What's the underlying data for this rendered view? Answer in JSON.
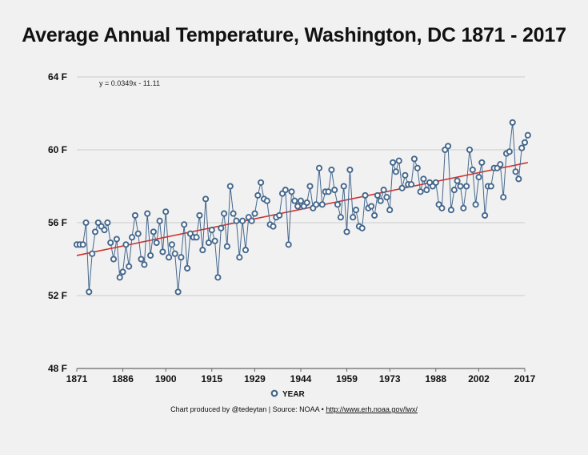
{
  "chart_data": {
    "type": "line",
    "title": "Average Annual Temperature, Washington, DC 1871 - 2017",
    "equation": "y = 0.0349x - 11.11",
    "ylim": [
      48,
      64
    ],
    "y_ticks": [
      "64 F",
      "60 F",
      "56 F",
      "52 F",
      "48 F"
    ],
    "y_tick_values": [
      64,
      60,
      56,
      52,
      48
    ],
    "xlim": [
      1871,
      2017
    ],
    "x_ticks": [
      "1871",
      "1886",
      "1900",
      "1915",
      "1929",
      "1944",
      "1959",
      "1973",
      "1988",
      "2002",
      "2017"
    ],
    "x_tick_values": [
      1871,
      1886,
      1900,
      1915,
      1929,
      1944,
      1959,
      1973,
      1988,
      2002,
      2017
    ],
    "grid": true,
    "legend_position": "bottom-center",
    "colors": {
      "series": "#44678d",
      "marker_fill": "#ffffff",
      "trend": "#d0312d",
      "grid": "#bdbdbd"
    },
    "series": [
      {
        "name": "YEAR",
        "x_start": 1871,
        "values": [
          54.8,
          54.8,
          54.8,
          56.0,
          52.2,
          54.3,
          55.5,
          56.0,
          55.8,
          55.6,
          56.0,
          54.9,
          54.0,
          55.1,
          53.0,
          53.3,
          54.8,
          53.6,
          55.2,
          56.4,
          55.4,
          54.0,
          53.7,
          56.5,
          54.2,
          55.5,
          54.9,
          56.1,
          54.4,
          56.6,
          54.1,
          54.8,
          54.3,
          52.2,
          54.1,
          55.9,
          53.5,
          55.4,
          55.2,
          55.2,
          56.4,
          54.5,
          57.3,
          54.9,
          55.6,
          55.0,
          53.0,
          55.7,
          56.5,
          54.7,
          58.0,
          56.5,
          56.1,
          54.1,
          56.1,
          54.5,
          56.3,
          56.1,
          56.5,
          57.5,
          58.2,
          57.3,
          57.2,
          55.9,
          55.8,
          56.3,
          56.4,
          57.6,
          57.8,
          54.8,
          57.7,
          57.2,
          56.9,
          57.2,
          56.9,
          57.1,
          58.0,
          56.8,
          57.0,
          59.0,
          57.0,
          57.7,
          57.7,
          58.9,
          57.8,
          57.0,
          56.3,
          58.0,
          55.5,
          58.9,
          56.3,
          56.7,
          55.8,
          55.7,
          57.5,
          56.8,
          56.9,
          56.4,
          57.5,
          57.2,
          57.8,
          57.4,
          56.7,
          59.3,
          58.8,
          59.4,
          57.9,
          58.6,
          58.1,
          58.1,
          59.5,
          59.0,
          57.7,
          58.4,
          57.8,
          58.2,
          58.0,
          58.2,
          57.0,
          56.8,
          60.0,
          60.2,
          56.7,
          57.8,
          58.3,
          58.0,
          56.8,
          58.0,
          60.0,
          58.9,
          57.0,
          58.5,
          59.3,
          56.4,
          58.0,
          58.0,
          59.0,
          59.0,
          59.2,
          57.4,
          59.8,
          59.9,
          61.5,
          58.8,
          58.4,
          60.1,
          60.4,
          60.8
        ]
      }
    ],
    "trend_line": {
      "slope": 0.0349,
      "intercept": -11.11
    }
  },
  "legend": {
    "label": "YEAR"
  },
  "credit": {
    "text": "Chart produced by @tedeytan | Source: NOAA • ",
    "link": "http://www.erh.noaa.gov/lwx/"
  }
}
